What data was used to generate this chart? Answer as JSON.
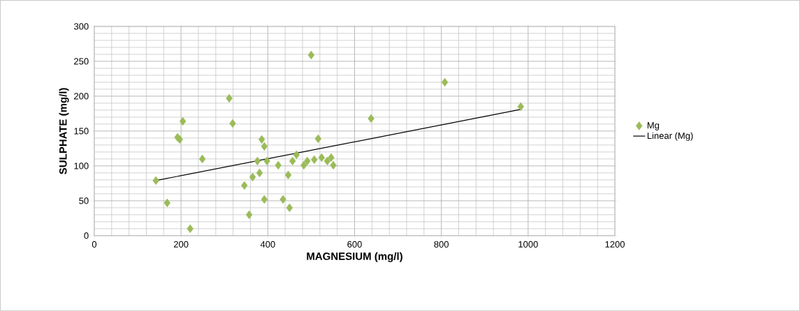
{
  "chart_data": {
    "type": "scatter",
    "xlabel": "MAGNESIUM (mg/l)",
    "ylabel": "SULPHATE (mg/l)",
    "xlim": [
      0,
      1200
    ],
    "xticks": [
      0,
      200,
      400,
      600,
      800,
      1000,
      1200
    ],
    "ylim": [
      0,
      300
    ],
    "yticks": [
      0,
      50,
      100,
      150,
      200,
      250,
      300
    ],
    "grid": true,
    "legend": "right",
    "series": [
      {
        "name": "Mg",
        "color": "#9bbb59",
        "marker": "diamond",
        "x": [
          142,
          168,
          221,
          204,
          192,
          197,
          249,
          311,
          319,
          346,
          357,
          365,
          381,
          386,
          392,
          376,
          398,
          392,
          424,
          435,
          447,
          450,
          457,
          466,
          500,
          516,
          638,
          483,
          491,
          507,
          524,
          537,
          546,
          551,
          808,
          983
        ],
        "values": [
          79,
          47,
          10,
          164,
          141,
          138,
          110,
          197,
          161,
          72,
          30,
          84,
          90,
          138,
          128,
          107,
          107,
          52,
          101,
          52,
          87,
          40,
          107,
          116,
          259,
          139,
          168,
          101,
          107,
          109,
          112,
          107,
          112,
          101,
          220,
          185
        ]
      },
      {
        "name": "Linear (Mg)",
        "type": "line",
        "marker": "none",
        "color": "#000000",
        "x": [
          142,
          983
        ],
        "values": [
          79,
          181
        ]
      }
    ]
  }
}
